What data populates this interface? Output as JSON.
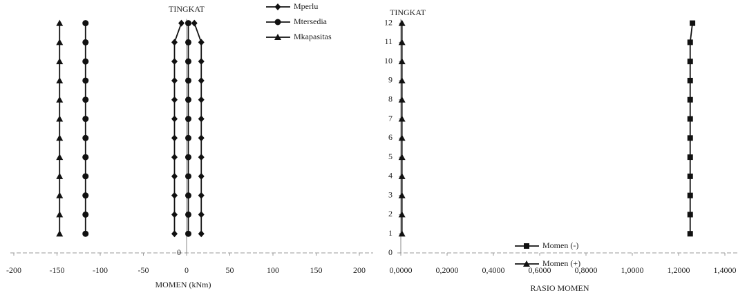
{
  "chart_data": [
    {
      "type": "line",
      "y_label": "TINGKAT",
      "x_label": "MOMEN (kNm)",
      "levels": [
        1,
        2,
        3,
        4,
        5,
        6,
        7,
        8,
        9,
        10,
        11,
        12
      ],
      "xlim": [
        -200,
        200
      ],
      "xticks": [
        -200,
        -150,
        -100,
        -50,
        0,
        50,
        100,
        150,
        200
      ],
      "ylim": [
        0,
        12
      ],
      "yticks": [
        0
      ],
      "legend": "top",
      "series": [
        {
          "name": "Mperlu",
          "color": "#111",
          "marker": "diamond",
          "values": [
            -14,
            -14,
            -14,
            -14,
            -14,
            -14,
            -14,
            -14,
            -14,
            -14,
            -14,
            -6
          ],
          "values_positive": [
            17,
            17,
            17,
            17,
            17,
            17,
            17,
            17,
            17,
            17,
            17,
            9
          ]
        },
        {
          "name": "Mtersedia",
          "color": "#111",
          "marker": "circle",
          "values": [
            -117,
            -117,
            -117,
            -117,
            -117,
            -117,
            -117,
            -117,
            -117,
            -117,
            -117,
            -117
          ],
          "values_positive": [
            2,
            2,
            2,
            2,
            2,
            2,
            2,
            2,
            2,
            2,
            2,
            2
          ]
        },
        {
          "name": "Mkapasitas",
          "color": "#111",
          "marker": "triangle",
          "values": [
            -147,
            -147,
            -147,
            -147,
            -147,
            -147,
            -147,
            -147,
            -147,
            -147,
            -147,
            -147
          ]
        }
      ]
    },
    {
      "type": "line",
      "y_label": "TINGKAT",
      "x_label": "RASIO MOMEN",
      "levels": [
        1,
        2,
        3,
        4,
        5,
        6,
        7,
        8,
        9,
        10,
        11,
        12
      ],
      "xlim": [
        0,
        1.4
      ],
      "xticks": [
        {
          "value": 0,
          "label": "0,0000"
        },
        {
          "value": 0.2,
          "label": "0,2000"
        },
        {
          "value": 0.4,
          "label": "0,4000"
        },
        {
          "value": 0.6,
          "label": "0,6000"
        },
        {
          "value": 0.8,
          "label": "0,8000"
        },
        {
          "value": 1.0,
          "label": "1,0000"
        },
        {
          "value": 1.2,
          "label": "1,2000"
        },
        {
          "value": 1.4,
          "label": "1,4000"
        }
      ],
      "ylim": [
        0,
        12
      ],
      "yticks": [
        0,
        1,
        2,
        3,
        4,
        5,
        6,
        7,
        8,
        9,
        10,
        11,
        12
      ],
      "legend": "bottom-right",
      "series": [
        {
          "name": "Momen (-)",
          "color": "#111",
          "marker": "square",
          "values": [
            1.25,
            1.25,
            1.25,
            1.25,
            1.25,
            1.25,
            1.25,
            1.25,
            1.25,
            1.25,
            1.25,
            1.26
          ]
        },
        {
          "name": "Momen (+)",
          "color": "#111",
          "marker": "triangle",
          "values": [
            0.005,
            0.005,
            0.005,
            0.005,
            0.005,
            0.005,
            0.005,
            0.005,
            0.005,
            0.005,
            0.005,
            0.005
          ]
        }
      ]
    }
  ]
}
